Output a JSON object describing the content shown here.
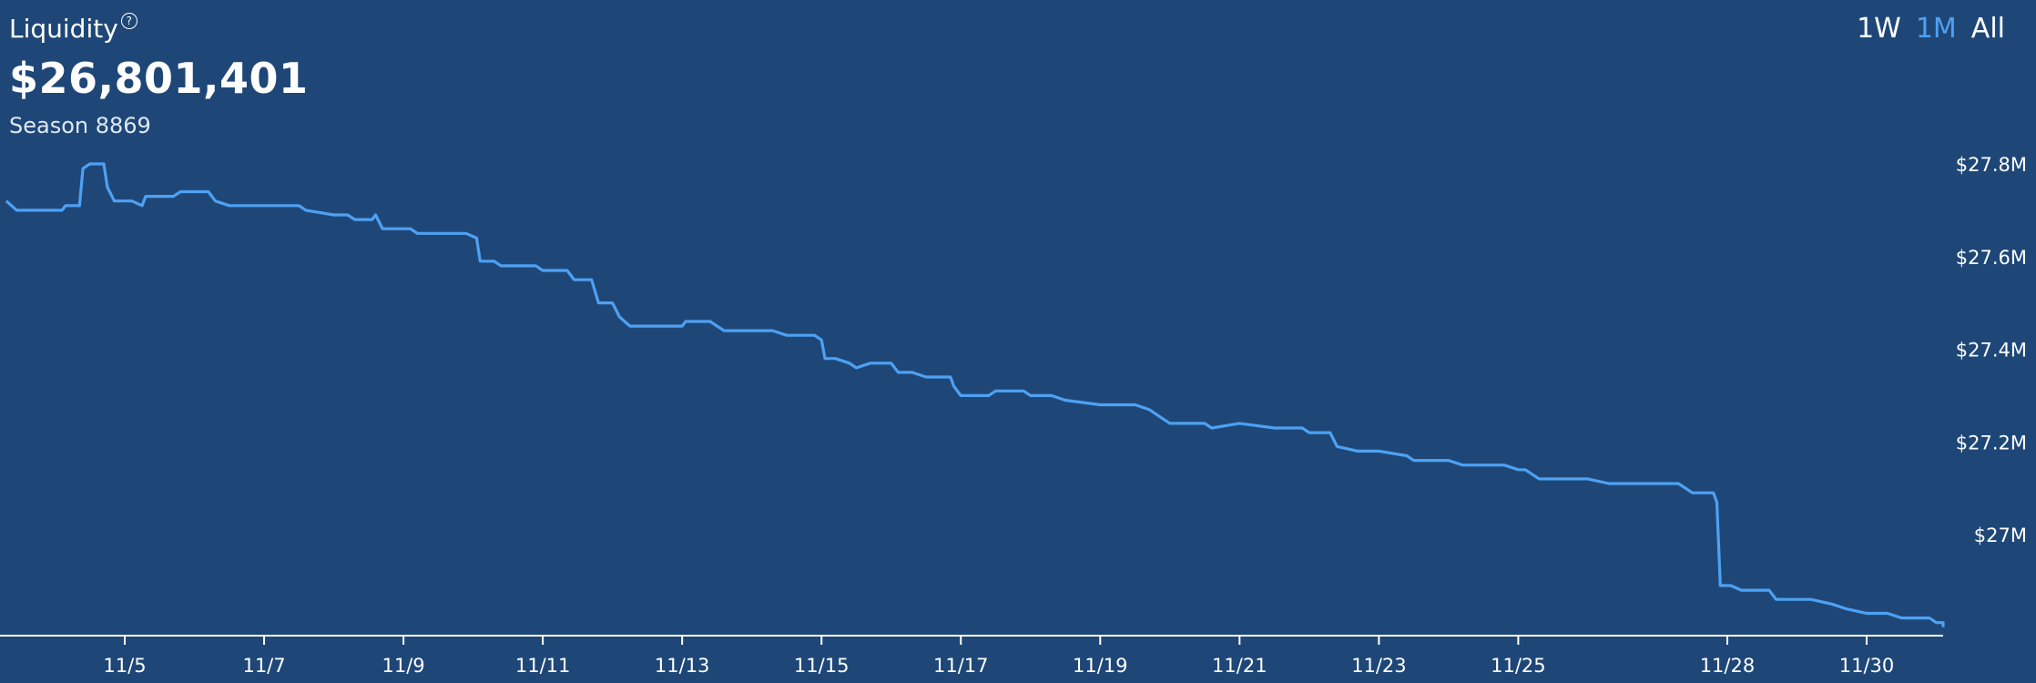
{
  "metric": {
    "label": "Liquidity",
    "help_icon": "question-circle-icon",
    "value": "$26,801,401",
    "subtitle": "Season 8869"
  },
  "range_tabs": [
    {
      "label": "1W",
      "active": false
    },
    {
      "label": "1M",
      "active": true
    },
    {
      "label": "All",
      "active": false
    }
  ],
  "colors": {
    "background": "#1e4778",
    "line": "#4ea1f3",
    "axis": "#ffffff",
    "active_tab": "#4ea1f3"
  },
  "chart_data": {
    "type": "line",
    "xlabel": "",
    "ylabel": "",
    "grid": false,
    "x_ticks": [
      "11/5",
      "11/7",
      "11/9",
      "11/11",
      "11/13",
      "11/15",
      "11/17",
      "11/19",
      "11/21",
      "11/23",
      "11/25",
      "11/28",
      "11/30"
    ],
    "y_ticks": [
      {
        "value": 27.8,
        "label": "$27.8M"
      },
      {
        "value": 27.6,
        "label": "$27.6M"
      },
      {
        "value": 27.4,
        "label": "$27.4M"
      },
      {
        "value": 27.2,
        "label": "$27.2M"
      },
      {
        "value": 27.0,
        "label": "$27M"
      }
    ],
    "x_range": [
      3.3,
      31.4
    ],
    "y_range": [
      26.8,
      28.0
    ],
    "series": [
      {
        "values_unit": "$M",
        "points": [
          [
            3.3,
            27.72
          ],
          [
            3.45,
            27.7
          ],
          [
            3.8,
            27.7
          ],
          [
            4.1,
            27.7
          ],
          [
            4.15,
            27.71
          ],
          [
            4.35,
            27.71
          ],
          [
            4.4,
            27.79
          ],
          [
            4.5,
            27.8
          ],
          [
            4.7,
            27.8
          ],
          [
            4.75,
            27.75
          ],
          [
            4.85,
            27.72
          ],
          [
            5.1,
            27.72
          ],
          [
            5.25,
            27.71
          ],
          [
            5.3,
            27.73
          ],
          [
            5.7,
            27.73
          ],
          [
            5.8,
            27.74
          ],
          [
            6.2,
            27.74
          ],
          [
            6.3,
            27.72
          ],
          [
            6.5,
            27.71
          ],
          [
            7.0,
            27.71
          ],
          [
            7.5,
            27.71
          ],
          [
            7.6,
            27.7
          ],
          [
            8.0,
            27.69
          ],
          [
            8.2,
            27.69
          ],
          [
            8.3,
            27.68
          ],
          [
            8.55,
            27.68
          ],
          [
            8.6,
            27.69
          ],
          [
            8.7,
            27.66
          ],
          [
            9.1,
            27.66
          ],
          [
            9.2,
            27.65
          ],
          [
            9.5,
            27.65
          ],
          [
            9.9,
            27.65
          ],
          [
            10.05,
            27.64
          ],
          [
            10.1,
            27.59
          ],
          [
            10.3,
            27.59
          ],
          [
            10.4,
            27.58
          ],
          [
            10.7,
            27.58
          ],
          [
            10.9,
            27.58
          ],
          [
            11.0,
            27.57
          ],
          [
            11.35,
            27.57
          ],
          [
            11.45,
            27.55
          ],
          [
            11.7,
            27.55
          ],
          [
            11.8,
            27.5
          ],
          [
            12.0,
            27.5
          ],
          [
            12.1,
            27.47
          ],
          [
            12.25,
            27.45
          ],
          [
            12.6,
            27.45
          ],
          [
            12.9,
            27.45
          ],
          [
            13.0,
            27.45
          ],
          [
            13.05,
            27.46
          ],
          [
            13.4,
            27.46
          ],
          [
            13.6,
            27.44
          ],
          [
            14.0,
            27.44
          ],
          [
            14.3,
            27.44
          ],
          [
            14.5,
            27.43
          ],
          [
            14.9,
            27.43
          ],
          [
            15.0,
            27.42
          ],
          [
            15.05,
            27.38
          ],
          [
            15.2,
            27.38
          ],
          [
            15.4,
            27.37
          ],
          [
            15.5,
            27.36
          ],
          [
            15.7,
            27.37
          ],
          [
            16.0,
            27.37
          ],
          [
            16.1,
            27.35
          ],
          [
            16.3,
            27.35
          ],
          [
            16.5,
            27.34
          ],
          [
            16.85,
            27.34
          ],
          [
            16.9,
            27.32
          ],
          [
            17.0,
            27.3
          ],
          [
            17.2,
            27.3
          ],
          [
            17.4,
            27.3
          ],
          [
            17.5,
            27.31
          ],
          [
            17.9,
            27.31
          ],
          [
            18.0,
            27.3
          ],
          [
            18.3,
            27.3
          ],
          [
            18.5,
            27.29
          ],
          [
            19.0,
            27.28
          ],
          [
            19.5,
            27.28
          ],
          [
            19.7,
            27.27
          ],
          [
            20.0,
            27.24
          ],
          [
            20.5,
            27.24
          ],
          [
            20.6,
            27.23
          ],
          [
            21.0,
            27.24
          ],
          [
            21.5,
            27.23
          ],
          [
            21.9,
            27.23
          ],
          [
            22.0,
            27.22
          ],
          [
            22.3,
            27.22
          ],
          [
            22.4,
            27.19
          ],
          [
            22.7,
            27.18
          ],
          [
            23.0,
            27.18
          ],
          [
            23.4,
            27.17
          ],
          [
            23.5,
            27.16
          ],
          [
            23.8,
            27.16
          ],
          [
            24.0,
            27.16
          ],
          [
            24.2,
            27.15
          ],
          [
            24.5,
            27.15
          ],
          [
            24.8,
            27.15
          ],
          [
            25.0,
            27.14
          ],
          [
            25.1,
            27.14
          ],
          [
            25.3,
            27.12
          ],
          [
            25.6,
            27.12
          ],
          [
            26.0,
            27.12
          ],
          [
            26.3,
            27.11
          ],
          [
            26.7,
            27.11
          ],
          [
            27.0,
            27.11
          ],
          [
            27.3,
            27.11
          ],
          [
            27.5,
            27.09
          ],
          [
            27.8,
            27.09
          ],
          [
            27.85,
            27.07
          ],
          [
            27.9,
            26.89
          ],
          [
            28.05,
            26.89
          ],
          [
            28.2,
            26.88
          ],
          [
            28.6,
            26.88
          ],
          [
            28.7,
            26.86
          ],
          [
            29.2,
            26.86
          ],
          [
            29.5,
            26.85
          ],
          [
            29.7,
            26.84
          ],
          [
            30.0,
            26.83
          ],
          [
            30.3,
            26.83
          ],
          [
            30.5,
            26.82
          ],
          [
            30.9,
            26.82
          ],
          [
            31.0,
            26.81
          ],
          [
            31.1,
            26.81
          ],
          [
            31.3,
            26.81
          ],
          [
            31.35,
            26.8
          ]
        ]
      }
    ]
  }
}
